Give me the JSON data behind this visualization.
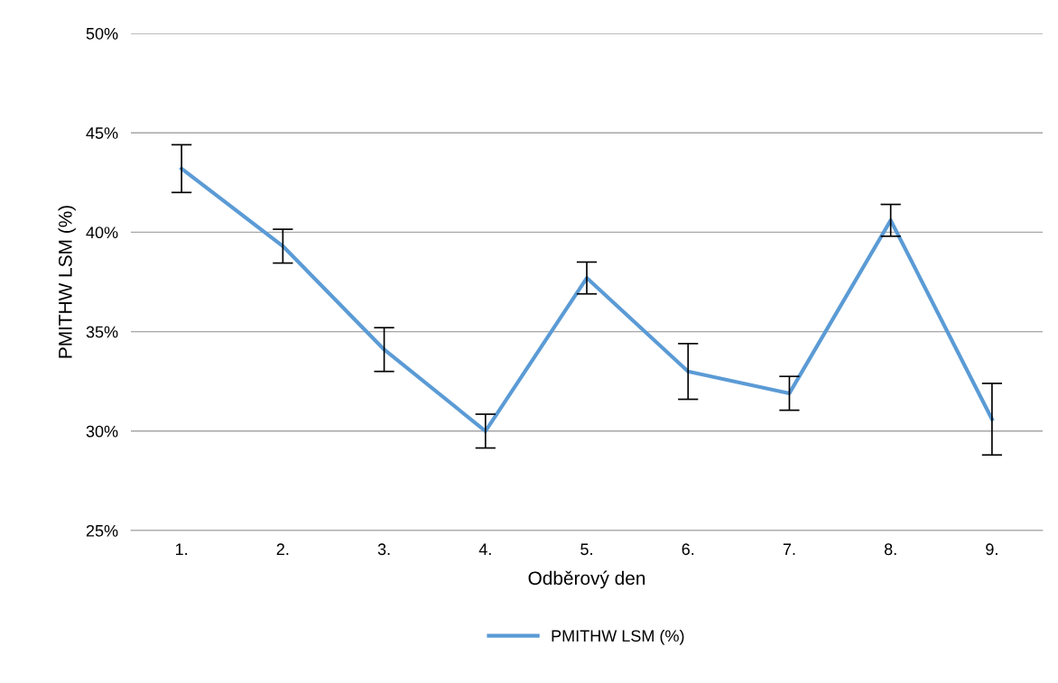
{
  "chart_data": {
    "type": "line",
    "xlabel": "Odběrový den",
    "ylabel": "PMITHW LSM (%)",
    "categories": [
      "1.",
      "2.",
      "3.",
      "4.",
      "5.",
      "6.",
      "7.",
      "8.",
      "9."
    ],
    "series": [
      {
        "name": "PMITHW LSM (%)",
        "color": "#5b9bd5",
        "values": [
          43.2,
          39.3,
          34.1,
          30.0,
          37.7,
          33.0,
          31.9,
          40.6,
          30.6
        ],
        "errors": [
          1.2,
          0.85,
          1.1,
          0.85,
          0.8,
          1.4,
          0.85,
          0.8,
          1.8
        ]
      }
    ],
    "ylim": [
      25,
      50
    ],
    "yticks": [
      {
        "value": 25,
        "label": "25%"
      },
      {
        "value": 30,
        "label": "30%"
      },
      {
        "value": 35,
        "label": "35%"
      },
      {
        "value": 40,
        "label": "40%"
      },
      {
        "value": 45,
        "label": "45%"
      },
      {
        "value": 50,
        "label": "50%"
      }
    ],
    "grid": "y",
    "legend": "bottom",
    "marker": "none",
    "line_style": "solid"
  }
}
